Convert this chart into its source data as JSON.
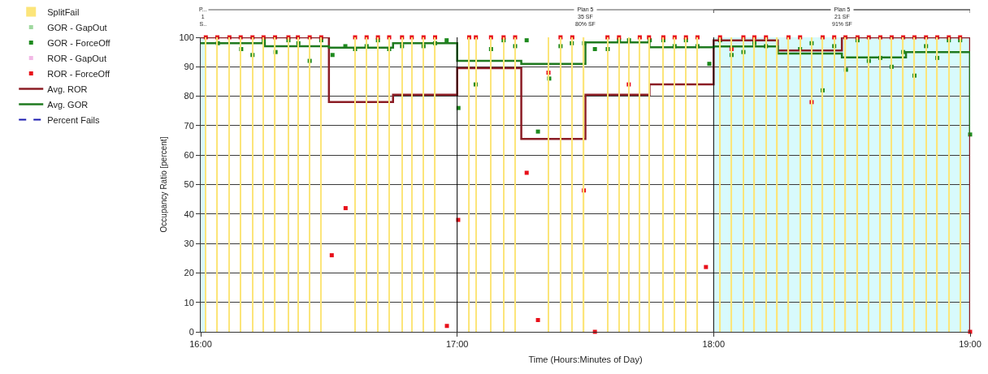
{
  "chart_data": {
    "type": "scatter",
    "xlabel": "Time (Hours:Minutes of Day)",
    "ylabel": "Occupancy Ratio [percent]",
    "xlim": [
      16,
      19
    ],
    "ylim": [
      0,
      100
    ],
    "xticks": [
      {
        "value": 16,
        "label": "16:00"
      },
      {
        "value": 17,
        "label": "17:00"
      },
      {
        "value": 18,
        "label": "18:00"
      },
      {
        "value": 19,
        "label": "19:00"
      }
    ],
    "yticks": [
      0,
      10,
      20,
      30,
      40,
      50,
      60,
      70,
      80,
      90,
      100
    ],
    "grid": "y",
    "legend": "left",
    "annotations": [
      "Plan 5\n35 SF\n80% SF"
    ],
    "bands": [
      {
        "axis": "x",
        "from": 16,
        "to": 16.02,
        "label": "P...\n1\nS..",
        "color": "#d8fafc"
      },
      {
        "axis": "x",
        "from": 18,
        "to": 19,
        "label": "Plan 5\n21 SF\n91% SF",
        "color": "#d8fafc"
      }
    ],
    "ref_lines": [
      {
        "axis": "x",
        "value": 17,
        "color": "#000000"
      },
      {
        "axis": "x",
        "value": 18,
        "color": "#000000"
      }
    ],
    "series": [
      {
        "name": "SplitFail",
        "type": "bar",
        "color": "#fce57a",
        "x": [
          16.02,
          16.065,
          16.112,
          16.156,
          16.202,
          16.245,
          16.29,
          16.342,
          16.379,
          16.425,
          16.47,
          16.602,
          16.647,
          16.691,
          16.735,
          16.785,
          16.823,
          16.869,
          16.914,
          17.047,
          17.073,
          17.132,
          17.181,
          17.226,
          17.356,
          17.403,
          17.449,
          17.494,
          17.586,
          17.631,
          17.67,
          17.712,
          17.748,
          17.804,
          17.848,
          17.892,
          17.937,
          18.025,
          18.07,
          18.116,
          18.159,
          18.204,
          18.248,
          18.292,
          18.337,
          18.382,
          18.425,
          18.47,
          18.514,
          18.561,
          18.605,
          18.65,
          18.694,
          18.739,
          18.783,
          18.828,
          18.872,
          18.917,
          18.961
        ],
        "values": [
          100,
          100,
          100,
          100,
          100,
          100,
          100,
          100,
          100,
          100,
          100,
          100,
          100,
          100,
          100,
          100,
          100,
          100,
          100,
          100,
          100,
          100,
          100,
          100,
          100,
          100,
          100,
          100,
          100,
          100,
          100,
          100,
          100,
          100,
          100,
          100,
          100,
          100,
          100,
          100,
          100,
          100,
          100,
          100,
          100,
          100,
          100,
          100,
          100,
          100,
          100,
          100,
          100,
          100,
          100,
          100,
          100,
          100,
          100
        ]
      },
      {
        "name": "GOR - GapOut",
        "marker": "square",
        "color": "#9fd89f"
      },
      {
        "name": "GOR - ForceOff",
        "marker": "square",
        "color": "#1e8a1e",
        "x": [
          16.067,
          16.158,
          16.202,
          16.246,
          16.292,
          16.342,
          16.381,
          16.425,
          16.47,
          16.514,
          16.564,
          16.602,
          16.647,
          16.691,
          16.735,
          16.785,
          16.869,
          16.914,
          16.959,
          17.005,
          17.072,
          17.132,
          17.181,
          17.226,
          17.271,
          17.315,
          17.359,
          17.403,
          17.447,
          17.495,
          17.537,
          17.587,
          17.631,
          17.67,
          17.751,
          17.804,
          17.848,
          17.892,
          17.937,
          17.983,
          18.025,
          18.07,
          18.116,
          18.159,
          18.204,
          18.337,
          18.382,
          18.425,
          18.47,
          18.516,
          18.561,
          18.605,
          18.65,
          18.694,
          18.739,
          18.783,
          18.828,
          18.872,
          18.917,
          18.961,
          19.0
        ],
        "values": [
          98,
          96,
          94,
          99,
          95,
          99,
          98,
          92,
          99,
          94,
          97,
          96,
          97,
          99,
          96,
          97,
          97,
          98,
          99,
          76,
          84,
          96,
          99,
          97,
          99,
          68,
          86,
          97,
          98,
          98,
          96,
          96,
          99,
          99,
          99,
          99,
          97,
          99,
          97,
          91,
          99,
          94,
          95,
          98,
          97,
          96,
          98,
          82,
          97,
          89,
          99,
          92,
          93,
          90,
          95,
          87,
          97,
          93,
          99,
          99,
          67
        ]
      },
      {
        "name": "ROR - GapOut",
        "marker": "square",
        "color": "#f2b8e6"
      },
      {
        "name": "ROR - ForceOff",
        "marker": "square",
        "color": "#e8101a",
        "x": [
          16.02,
          16.065,
          16.112,
          16.156,
          16.202,
          16.245,
          16.29,
          16.342,
          16.379,
          16.425,
          16.47,
          16.511,
          16.565,
          16.602,
          16.647,
          16.691,
          16.735,
          16.785,
          16.823,
          16.869,
          16.914,
          16.96,
          17.004,
          17.047,
          17.073,
          17.132,
          17.181,
          17.226,
          17.271,
          17.315,
          17.356,
          17.403,
          17.449,
          17.494,
          17.537,
          17.586,
          17.631,
          17.669,
          17.712,
          17.748,
          17.804,
          17.848,
          17.892,
          17.937,
          17.97,
          18.025,
          18.07,
          18.116,
          18.159,
          18.204,
          18.292,
          18.337,
          18.382,
          18.425,
          18.47,
          18.514,
          18.561,
          18.605,
          18.65,
          18.694,
          18.739,
          18.783,
          18.828,
          18.872,
          18.917,
          18.961,
          19.0
        ],
        "values": [
          100,
          100,
          100,
          100,
          100,
          100,
          100,
          100,
          100,
          100,
          100,
          26,
          42,
          100,
          100,
          100,
          100,
          100,
          100,
          100,
          100,
          2,
          38,
          100,
          100,
          100,
          100,
          100,
          54,
          4,
          88,
          100,
          100,
          48,
          0,
          100,
          100,
          84,
          100,
          100,
          100,
          100,
          100,
          100,
          22,
          100,
          96,
          100,
          100,
          100,
          100,
          100,
          78,
          100,
          100,
          100,
          100,
          100,
          100,
          100,
          100,
          100,
          100,
          100,
          100,
          100,
          0
        ]
      },
      {
        "name": "Avg. ROR",
        "type": "step",
        "line_style": "solid",
        "color": "#8b1c24",
        "x": [
          16,
          16.5,
          16.75,
          17,
          17.25,
          17.5,
          17.75,
          18,
          18.25,
          18.5,
          19
        ],
        "values": [
          100,
          78,
          80.5,
          89.5,
          65.5,
          80.5,
          84,
          99,
          95.5,
          100,
          0
        ]
      },
      {
        "name": "Avg. GOR",
        "type": "step",
        "line_style": "solid",
        "color": "#1f7a1f",
        "x": [
          16,
          16.25,
          16.5,
          16.75,
          17,
          17.25,
          17.5,
          17.75,
          18,
          18.25,
          18.5,
          18.75,
          19
        ],
        "values": [
          98,
          97,
          96.5,
          98,
          92,
          91,
          98.3,
          96.6,
          96.9,
          94.5,
          93.2,
          95,
          67
        ]
      },
      {
        "name": "Percent Fails",
        "type": "line",
        "line_style": "dashed",
        "color": "#1a1ab0"
      }
    ]
  }
}
